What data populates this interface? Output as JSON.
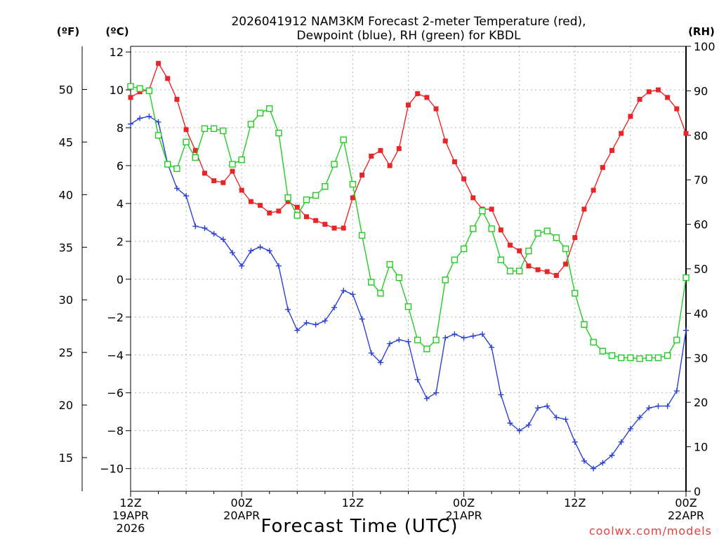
{
  "chart_data": {
    "type": "line",
    "title_line1": "2026041912 NAM3KM Forecast 2-meter Temperature (red),",
    "title_line2": "Dewpoint (blue), RH (green) for KBDL",
    "xlabel": "Forecast Time (UTC)",
    "watermark": "coolwx.com/models",
    "axis_labels": {
      "f": "(ºF)",
      "c": "(ºC)",
      "rh": "(RH)"
    },
    "x_range_hours": [
      0,
      60
    ],
    "x_ticks": [
      {
        "hour": 0,
        "lines": [
          "12Z",
          "19APR",
          "2026"
        ]
      },
      {
        "hour": 12,
        "lines": [
          "00Z",
          "20APR"
        ]
      },
      {
        "hour": 24,
        "lines": [
          "12Z"
        ]
      },
      {
        "hour": 36,
        "lines": [
          "00Z",
          "21APR"
        ]
      },
      {
        "hour": 48,
        "lines": [
          "12Z"
        ]
      },
      {
        "hour": 60,
        "lines": [
          "00Z",
          "22APR"
        ]
      }
    ],
    "c_axis": {
      "range": [
        -11.2,
        12.3
      ],
      "ticks": [
        "12",
        "10",
        "8",
        "6",
        "4",
        "2",
        "0",
        "−2",
        "−4",
        "−6",
        "−8",
        "−10"
      ],
      "tick_values": [
        12,
        10,
        8,
        6,
        4,
        2,
        0,
        -2,
        -4,
        -6,
        -8,
        -10
      ]
    },
    "f_axis": {
      "range": [
        11.8,
        54.1
      ],
      "ticks": [
        "50",
        "45",
        "40",
        "35",
        "30",
        "25",
        "20",
        "15"
      ],
      "tick_values": [
        50,
        45,
        40,
        35,
        30,
        25,
        20,
        15
      ]
    },
    "rh_axis": {
      "range": [
        0,
        100
      ],
      "ticks": [
        "0",
        "10",
        "20",
        "30",
        "40",
        "50",
        "60",
        "70",
        "80",
        "90",
        "100"
      ],
      "tick_values": [
        0,
        10,
        20,
        30,
        40,
        50,
        60,
        70,
        80,
        90,
        100
      ]
    },
    "series": [
      {
        "name": "Temperature",
        "unit": "C",
        "color": "#e8262a",
        "marker": "filled-square",
        "values": [
          9.6,
          9.9,
          10.0,
          11.4,
          10.6,
          9.5,
          7.9,
          6.8,
          5.6,
          5.2,
          5.1,
          5.7,
          4.7,
          4.1,
          3.9,
          3.5,
          3.6,
          4.1,
          3.8,
          3.3,
          3.1,
          2.9,
          2.7,
          2.7,
          4.3,
          5.5,
          6.5,
          6.8,
          6.0,
          6.9,
          9.2,
          9.8,
          9.6,
          9.0,
          7.3,
          6.2,
          5.3,
          4.3,
          3.7,
          3.7,
          2.6,
          1.8,
          1.5,
          0.7,
          0.5,
          0.4,
          0.2,
          0.8,
          2.2,
          3.7,
          4.7,
          5.9,
          6.8,
          7.7,
          8.6,
          9.5,
          9.9,
          10.0,
          9.6,
          9.0,
          7.7
        ]
      },
      {
        "name": "Dewpoint",
        "unit": "C",
        "color": "#2a42d4",
        "marker": "plus",
        "values": [
          8.2,
          8.5,
          8.6,
          8.3,
          6.1,
          4.8,
          4.4,
          2.8,
          2.7,
          2.4,
          2.1,
          1.4,
          0.7,
          1.5,
          1.7,
          1.5,
          0.7,
          -1.6,
          -2.7,
          -2.3,
          -2.4,
          -2.2,
          -1.5,
          -0.6,
          -0.8,
          -2.1,
          -3.9,
          -4.4,
          -3.4,
          -3.2,
          -3.3,
          -5.3,
          -6.3,
          -6.0,
          -3.1,
          -2.9,
          -3.1,
          -3.0,
          -2.9,
          -3.6,
          -6.1,
          -7.6,
          -8.0,
          -7.7,
          -6.8,
          -6.7,
          -7.3,
          -7.4,
          -8.6,
          -9.6,
          -10.0,
          -9.7,
          -9.3,
          -8.6,
          -7.9,
          -7.3,
          -6.8,
          -6.7,
          -6.7,
          -5.9,
          -2.7
        ]
      },
      {
        "name": "RH",
        "unit": "%",
        "color": "#22cc22",
        "marker": "open-square",
        "values": [
          91,
          90.5,
          90,
          80,
          73.5,
          72.5,
          78.5,
          75,
          81.5,
          81.5,
          81,
          73.5,
          74.5,
          82.5,
          85,
          86,
          80.5,
          66,
          62,
          65.5,
          66.5,
          68.5,
          73.5,
          79,
          69,
          57.5,
          47,
          44.5,
          51,
          48,
          41.5,
          34,
          32,
          34,
          47.5,
          52,
          54.5,
          59,
          63,
          59,
          52,
          49.5,
          49.5,
          54,
          58,
          58.5,
          57,
          54.5,
          44.5,
          37.5,
          33.5,
          31.5,
          30.5,
          30,
          30,
          29.8,
          30,
          30,
          30.5,
          34,
          48
        ]
      }
    ]
  }
}
